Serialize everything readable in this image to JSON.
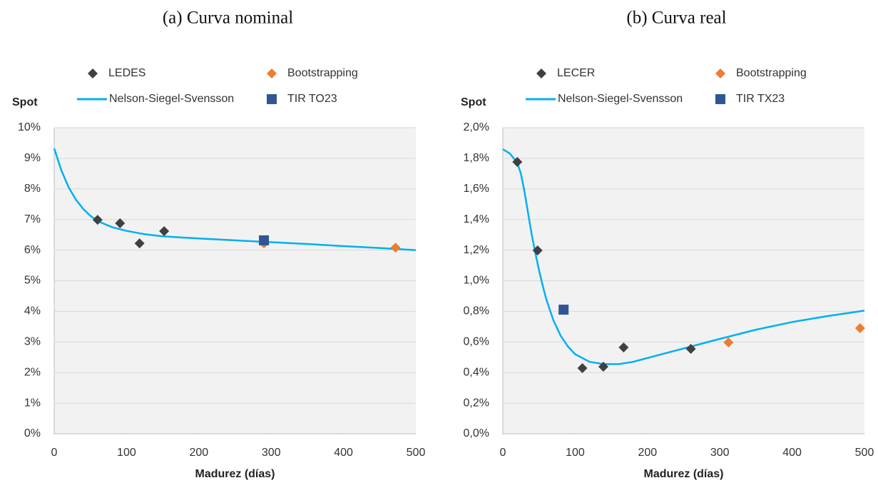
{
  "chart_data": [
    {
      "type": "scatter",
      "title": "(a) Curva nominal",
      "y_label": "Spot",
      "x_label": "Madurez (días)",
      "xlim": [
        0,
        500
      ],
      "xticks": [
        0,
        100,
        200,
        300,
        400,
        500
      ],
      "ylim": [
        0,
        10
      ],
      "yticks": [
        {
          "value": 0,
          "label": "0%"
        },
        {
          "value": 1,
          "label": "1%"
        },
        {
          "value": 2,
          "label": "2%"
        },
        {
          "value": 3,
          "label": "3%"
        },
        {
          "value": 4,
          "label": "4%"
        },
        {
          "value": 5,
          "label": "5%"
        },
        {
          "value": 6,
          "label": "6%"
        },
        {
          "value": 7,
          "label": "7%"
        },
        {
          "value": 8,
          "label": "8%"
        },
        {
          "value": 9,
          "label": "9%"
        },
        {
          "value": 10,
          "label": "10%"
        }
      ],
      "grid": true,
      "series": [
        {
          "name": "LEDES",
          "color": "#404040",
          "marker": "diamond",
          "x": [
            60,
            91,
            118,
            152
          ],
          "values": [
            6.99,
            6.88,
            6.22,
            6.62
          ]
        },
        {
          "name": "Bootstrapping",
          "color": "#ed7d31",
          "marker": "diamond",
          "x": [
            290,
            472
          ],
          "values": [
            6.22,
            6.08
          ]
        },
        {
          "name": "Nelson-Siegel-Svensson",
          "color": "#00b0f0",
          "marker": "line",
          "x": [
            0,
            10,
            20,
            30,
            40,
            50,
            60,
            80,
            100,
            125,
            150,
            200,
            250,
            300,
            350,
            400,
            450,
            500
          ],
          "values": [
            9.32,
            8.6,
            8.05,
            7.65,
            7.35,
            7.12,
            6.95,
            6.75,
            6.63,
            6.52,
            6.45,
            6.38,
            6.32,
            6.26,
            6.2,
            6.13,
            6.07,
            6.0
          ]
        },
        {
          "name": "TIR TO23",
          "color": "#2f5597",
          "marker": "square",
          "x": [
            290
          ],
          "values": [
            6.32
          ]
        }
      ]
    },
    {
      "type": "scatter",
      "title": "(b) Curva real",
      "y_label": "Spot",
      "x_label": "Madurez (días)",
      "xlim": [
        0,
        500
      ],
      "xticks": [
        0,
        100,
        200,
        300,
        400,
        500
      ],
      "ylim": [
        0,
        2
      ],
      "yticks": [
        {
          "value": 0,
          "label": "0,0%"
        },
        {
          "value": 0.2,
          "label": "0,2%"
        },
        {
          "value": 0.4,
          "label": "0,4%"
        },
        {
          "value": 0.6,
          "label": "0,6%"
        },
        {
          "value": 0.8,
          "label": "0,8%"
        },
        {
          "value": 1.0,
          "label": "1,0%"
        },
        {
          "value": 1.2,
          "label": "1,2%"
        },
        {
          "value": 1.4,
          "label": "1,4%"
        },
        {
          "value": 1.6,
          "label": "1,6%"
        },
        {
          "value": 1.8,
          "label": "1,8%"
        },
        {
          "value": 2.0,
          "label": "2,0%"
        }
      ],
      "grid": true,
      "series": [
        {
          "name": "LECER",
          "color": "#404040",
          "marker": "diamond",
          "x": [
            20,
            48,
            110,
            139,
            167,
            260
          ],
          "values": [
            1.776,
            1.198,
            0.429,
            0.438,
            0.564,
            0.555
          ]
        },
        {
          "name": "Bootstrapping",
          "color": "#ed7d31",
          "marker": "diamond",
          "x": [
            312,
            494
          ],
          "values": [
            0.597,
            0.69
          ]
        },
        {
          "name": "Nelson-Siegel-Svensson",
          "color": "#00b0f0",
          "marker": "line",
          "x": [
            0,
            10,
            20,
            25,
            30,
            35,
            40,
            45,
            50,
            55,
            60,
            70,
            80,
            90,
            100,
            120,
            140,
            160,
            180,
            220,
            260,
            300,
            350,
            400,
            450,
            500
          ],
          "values": [
            1.86,
            1.83,
            1.77,
            1.7,
            1.58,
            1.44,
            1.3,
            1.18,
            1.07,
            0.97,
            0.88,
            0.74,
            0.64,
            0.57,
            0.52,
            0.47,
            0.455,
            0.455,
            0.47,
            0.52,
            0.57,
            0.62,
            0.68,
            0.73,
            0.77,
            0.805
          ]
        },
        {
          "name": "TIR TX23",
          "color": "#2f5597",
          "marker": "square",
          "x": [
            84
          ],
          "values": [
            0.811
          ]
        }
      ]
    }
  ]
}
